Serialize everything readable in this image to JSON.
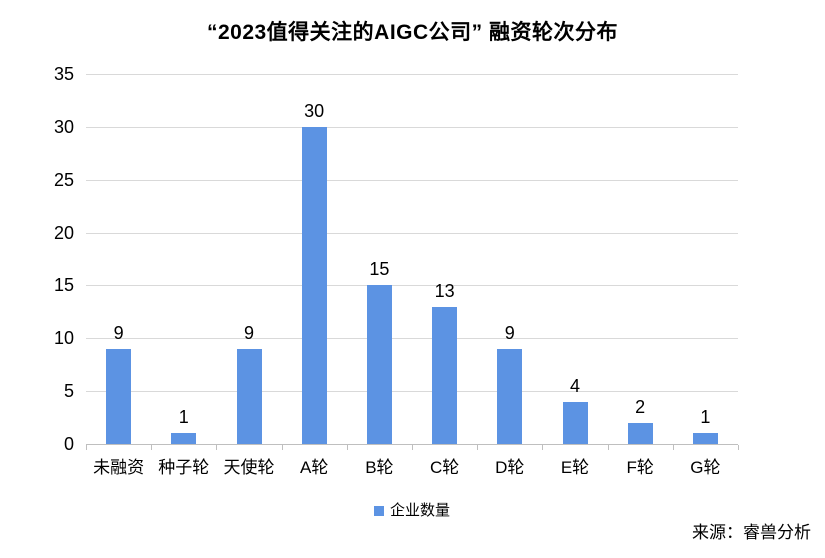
{
  "chart_data": {
    "type": "bar",
    "title": "“2023值得关注的AIGC公司” 融资轮次分布",
    "categories": [
      "未融资",
      "种子轮",
      "天使轮",
      "A轮",
      "B轮",
      "C轮",
      "D轮",
      "E轮",
      "F轮",
      "G轮"
    ],
    "series": [
      {
        "name": "企业数量",
        "values": [
          9,
          1,
          9,
          30,
          15,
          13,
          9,
          4,
          2,
          1
        ]
      }
    ],
    "xlabel": "",
    "ylabel": "",
    "ylim": [
      0,
      35
    ],
    "ytick_step": 5,
    "yticks": [
      0,
      5,
      10,
      15,
      20,
      25,
      30,
      35
    ],
    "grid": "horizontal",
    "value_labels": true,
    "legend_position": "bottom-center",
    "legend_entries": [
      "企业数量"
    ]
  },
  "source": {
    "label": "来源：睿兽分析"
  },
  "colors": {
    "bar": "#5C93E3",
    "gridline": "#D9D9D9",
    "axis": "#BFBFBF",
    "text": "#000000",
    "background": "#FFFFFF"
  }
}
